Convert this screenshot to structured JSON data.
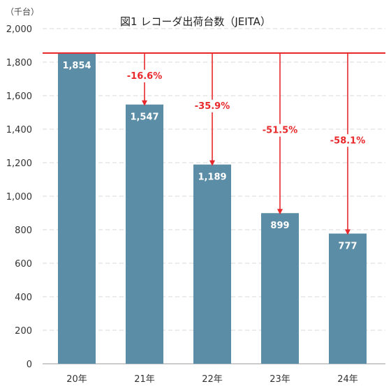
{
  "chart_data": {
    "type": "bar",
    "title": "図1 レコーダ出荷台数（JEITA）",
    "unit_label": "（千台）",
    "categories": [
      "20年",
      "21年",
      "22年",
      "23年",
      "24年"
    ],
    "values": [
      1854,
      1547,
      1189,
      899,
      777
    ],
    "value_labels": [
      "1,854",
      "1,547",
      "1,189",
      "899",
      "777"
    ],
    "ylim": [
      0,
      2000
    ],
    "yticks": [
      0,
      200,
      400,
      600,
      800,
      1000,
      1200,
      1400,
      1600,
      1800,
      2000
    ],
    "ytick_labels": [
      "0",
      "200",
      "400",
      "600",
      "800",
      "1,000",
      "1,200",
      "1,400",
      "1,600",
      "1,800",
      "2,000"
    ],
    "grid": true,
    "reference": {
      "value": 1854
    },
    "change_labels": [
      "-16.6%",
      "-35.9%",
      "-51.5%",
      "-58.1%"
    ],
    "colors": {
      "bar": "#5b8ea6",
      "reference": "#e8282b",
      "grid": "#d9d9d9",
      "axis": "#999999"
    }
  }
}
